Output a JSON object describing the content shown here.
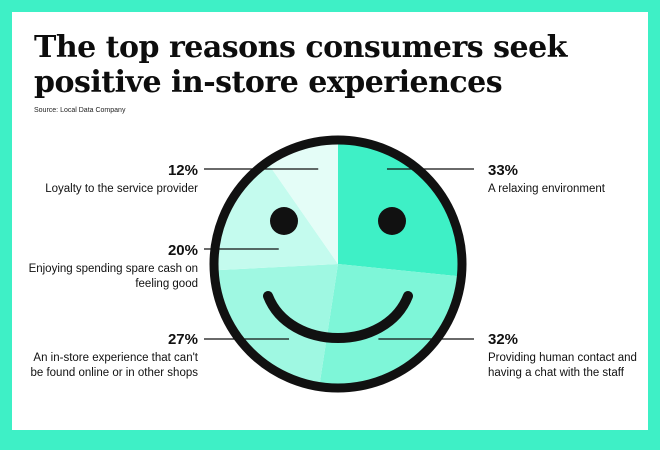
{
  "title": "The top reasons consumers seek positive in-store experiences",
  "source": "Source: Local Data Company",
  "colors": {
    "background": "#3ef0c6",
    "outline": "#111111",
    "slice_33": "#3ef0c6",
    "slice_32": "#7ef6d8",
    "slice_27": "#9ff8e2",
    "slice_20": "#c4fbee",
    "slice_12": "#e4fdf7"
  },
  "chart_data": {
    "type": "pie",
    "title": "The top reasons consumers seek positive in-store experiences",
    "slices": [
      {
        "label": "A relaxing environment",
        "value": 33,
        "display": "33%"
      },
      {
        "label": "Providing human contact and having a chat with the staff",
        "value": 32,
        "display": "32%"
      },
      {
        "label": "An in-store experience that can't be found online or in other shops",
        "value": 27,
        "display": "27%"
      },
      {
        "label": "Enjoying spending spare cash on feeling good",
        "value": 20,
        "display": "20%"
      },
      {
        "label": "Loyalty to the service provider",
        "value": 12,
        "display": "12%"
      }
    ]
  },
  "labels": {
    "l12": {
      "pct": "12%",
      "desc": "Loyalty to the service provider"
    },
    "l20": {
      "pct": "20%",
      "desc": "Enjoying spending spare cash on feeling good"
    },
    "l27": {
      "pct": "27%",
      "desc": "An in-store experience that can't be found online or in other shops"
    },
    "l33": {
      "pct": "33%",
      "desc": "A relaxing environment"
    },
    "l32": {
      "pct": "32%",
      "desc": "Providing human contact and having a chat with the staff"
    }
  }
}
